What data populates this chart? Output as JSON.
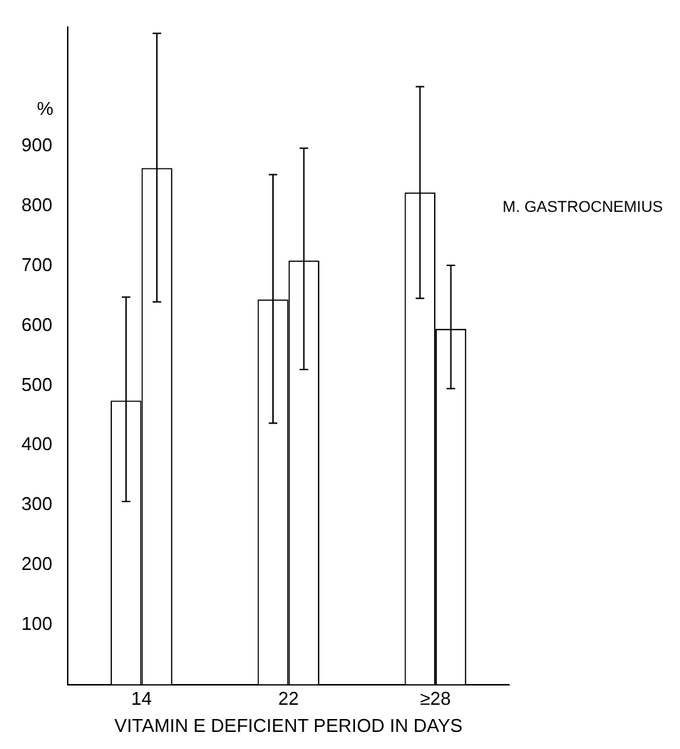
{
  "chart_data": {
    "type": "bar",
    "categories": [
      "14",
      "22",
      "≥28"
    ],
    "series": [
      {
        "color": "#ffffff",
        "values": [
          475,
          644,
          823
        ],
        "errors": [
          [
            306,
            648
          ],
          [
            437,
            853
          ],
          [
            646,
            1000
          ]
        ]
      },
      {
        "color": "#ffffff",
        "values": [
          864,
          709,
          595
        ],
        "errors": [
          [
            640,
            1089
          ],
          [
            527,
            897
          ],
          [
            495,
            701
          ]
        ]
      }
    ],
    "ylabel": "%",
    "xlabel": "VITAMIN E DEFICIENT PERIOD IN DAYS",
    "annotations": [
      "M. GASTROCNEMIUS"
    ],
    "ylim": [
      0,
      1100
    ],
    "yticks": [
      100,
      200,
      300,
      400,
      500,
      600,
      700,
      800,
      900
    ],
    "grid": false,
    "legend": false
  }
}
